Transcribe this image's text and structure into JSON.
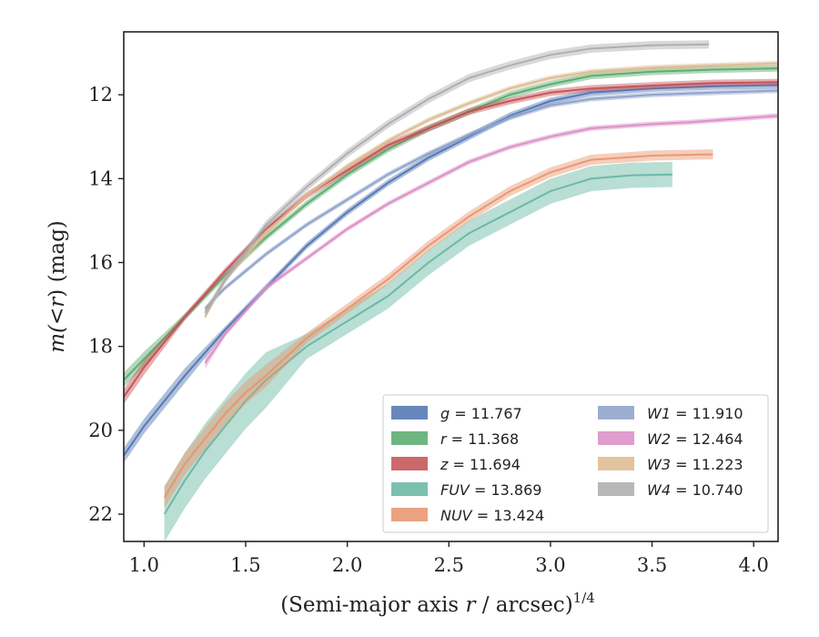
{
  "chart_data": {
    "type": "line",
    "title": "",
    "xlabel": "(Semi-major axis r / arcsec)",
    "xlabel_italic": "r",
    "xlabel_parts": [
      "(Semi-major axis ",
      "r",
      " / arcsec)"
    ],
    "xlabel_sup": "1/4",
    "ylabel_parts": [
      "m(",
      "<",
      "r",
      ") (mag)"
    ],
    "xlim": [
      0.9,
      4.12
    ],
    "ylim": [
      22.65,
      10.5
    ],
    "y_inverted": true,
    "grid": false,
    "legend_position": "bottom-right",
    "xticks": [
      1.0,
      1.5,
      2.0,
      2.5,
      3.0,
      3.5,
      4.0
    ],
    "xtick_labels": [
      "1.0",
      "1.5",
      "2.0",
      "2.5",
      "3.0",
      "3.5",
      "4.0"
    ],
    "yticks": [
      12,
      14,
      16,
      18,
      20,
      22
    ],
    "ytick_labels": [
      "12",
      "14",
      "16",
      "18",
      "20",
      "22"
    ],
    "series": [
      {
        "name": "g",
        "value": "11.767",
        "color": "#4c72b0",
        "band": 0.08,
        "x": [
          0.9,
          1.0,
          1.2,
          1.4,
          1.6,
          1.8,
          2.0,
          2.2,
          2.4,
          2.6,
          2.8,
          3.0,
          3.2,
          3.5,
          3.8,
          4.12
        ],
        "y": [
          20.6,
          19.9,
          18.7,
          17.6,
          16.6,
          15.6,
          14.8,
          14.1,
          13.5,
          13.0,
          12.5,
          12.15,
          11.95,
          11.85,
          11.8,
          11.77
        ]
      },
      {
        "name": "r",
        "value": "11.368",
        "color": "#55a868",
        "band": 0.08,
        "x": [
          0.9,
          1.0,
          1.2,
          1.4,
          1.6,
          1.8,
          2.0,
          2.2,
          2.4,
          2.6,
          2.8,
          3.0,
          3.2,
          3.5,
          3.8,
          4.12
        ],
        "y": [
          18.8,
          18.3,
          17.3,
          16.3,
          15.4,
          14.6,
          13.9,
          13.3,
          12.8,
          12.4,
          12.0,
          11.75,
          11.55,
          11.45,
          11.4,
          11.37
        ]
      },
      {
        "name": "z",
        "value": "11.694",
        "color": "#c44e52",
        "band": 0.08,
        "x": [
          0.9,
          1.0,
          1.2,
          1.4,
          1.6,
          1.8,
          2.0,
          2.2,
          2.4,
          2.6,
          2.8,
          3.0,
          3.2,
          3.5,
          3.8,
          4.12
        ],
        "y": [
          19.2,
          18.5,
          17.3,
          16.2,
          15.2,
          14.4,
          13.8,
          13.2,
          12.8,
          12.4,
          12.15,
          11.95,
          11.85,
          11.78,
          11.72,
          11.7
        ]
      },
      {
        "name": "FUV",
        "value": "13.869",
        "color": "#64b5a0",
        "band": 0.3,
        "x": [
          1.1,
          1.2,
          1.3,
          1.4,
          1.5,
          1.6,
          1.8,
          2.0,
          2.2,
          2.4,
          2.6,
          2.8,
          3.0,
          3.2,
          3.4,
          3.6
        ],
        "y": [
          22.0,
          21.2,
          20.5,
          19.9,
          19.3,
          18.8,
          18.0,
          17.4,
          16.8,
          16.0,
          15.3,
          14.8,
          14.3,
          14.0,
          13.92,
          13.9
        ]
      },
      {
        "name": "NUV",
        "value": "13.424",
        "color": "#e8926b",
        "band": 0.12,
        "x": [
          1.1,
          1.2,
          1.3,
          1.4,
          1.5,
          1.6,
          1.8,
          2.0,
          2.2,
          2.4,
          2.6,
          2.8,
          3.0,
          3.2,
          3.5,
          3.8
        ],
        "y": [
          21.6,
          20.8,
          20.2,
          19.6,
          19.1,
          18.7,
          17.8,
          17.1,
          16.4,
          15.6,
          14.9,
          14.3,
          13.85,
          13.55,
          13.45,
          13.42
        ]
      },
      {
        "name": "W1",
        "value": "11.910",
        "color": "#8c9fc9",
        "band": 0.06,
        "x": [
          1.3,
          1.4,
          1.6,
          1.8,
          2.0,
          2.2,
          2.4,
          2.6,
          2.8,
          3.0,
          3.2,
          3.5,
          3.8,
          4.12
        ],
        "y": [
          17.1,
          16.6,
          15.8,
          15.1,
          14.5,
          13.9,
          13.4,
          12.95,
          12.55,
          12.25,
          12.1,
          12.0,
          11.95,
          11.9
        ]
      },
      {
        "name": "W2",
        "value": "12.464",
        "color": "#da8bc3",
        "band": 0.06,
        "x": [
          1.3,
          1.4,
          1.6,
          1.8,
          2.0,
          2.2,
          2.4,
          2.6,
          2.8,
          3.0,
          3.2,
          3.5,
          3.7,
          4.12
        ],
        "y": [
          18.4,
          17.7,
          16.6,
          15.9,
          15.2,
          14.6,
          14.1,
          13.6,
          13.25,
          13.0,
          12.8,
          12.7,
          12.65,
          12.5
        ]
      },
      {
        "name": "W3",
        "value": "11.223",
        "color": "#dcb98e",
        "band": 0.06,
        "x": [
          1.3,
          1.4,
          1.6,
          1.8,
          2.0,
          2.2,
          2.4,
          2.6,
          2.8,
          3.0,
          3.2,
          3.5,
          3.8,
          4.12
        ],
        "y": [
          17.3,
          16.4,
          15.3,
          14.4,
          13.7,
          13.1,
          12.6,
          12.2,
          11.85,
          11.6,
          11.45,
          11.35,
          11.3,
          11.25
        ]
      },
      {
        "name": "W4",
        "value": "10.740",
        "color": "#aaaaaa",
        "band": 0.1,
        "x": [
          1.3,
          1.4,
          1.6,
          1.8,
          2.0,
          2.2,
          2.4,
          2.6,
          2.8,
          3.0,
          3.2,
          3.5,
          3.78
        ],
        "y": [
          17.2,
          16.4,
          15.1,
          14.2,
          13.4,
          12.7,
          12.1,
          11.6,
          11.3,
          11.05,
          10.9,
          10.82,
          10.8
        ]
      }
    ]
  }
}
